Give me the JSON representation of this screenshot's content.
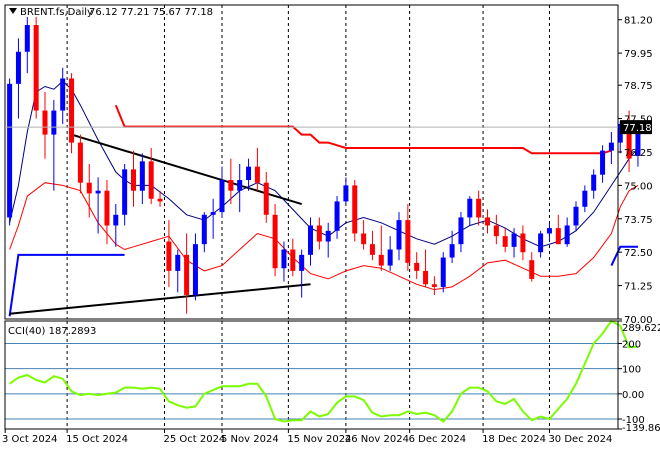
{
  "header": {
    "symbol_label": "BRENT.fs,Daily",
    "ohlc_label": "76.12 77.21 75.67 77.18",
    "indicator_label": "CCI(40) 187.2893"
  },
  "colors": {
    "background": "#ffffff",
    "frame": "#000000",
    "grid": "#c8c8c8",
    "bull": "#0000ff",
    "bear": "#ff0000",
    "sma_fast": "#000080",
    "band_low": "#ff0000",
    "level_red": "#ff0000",
    "level_blue": "#0000ff",
    "trendline": "#000000",
    "cci_line": "#7cfc00",
    "cci_level": "#4682b4",
    "price_tag_bg": "#000000",
    "price_tag_fg": "#ffffff"
  },
  "chart_data": [
    {
      "type": "candlestick",
      "title": "BRENT.fs,Daily",
      "y_range": [
        70.0,
        81.75
      ],
      "y_ticks": [
        "81.20",
        "79.95",
        "78.75",
        "77.50",
        "76.25",
        "75.00",
        "73.75",
        "72.50",
        "71.25",
        "70.00"
      ],
      "last_price_label": "77.18",
      "x_date_labels": [
        "3 Oct 2024",
        "15 Oct 2024",
        "25 Oct 2024",
        "5 Nov 2024",
        "15 Nov 2024",
        "26 Nov 2024",
        "6 Dec 2024",
        "18 Dec 2024",
        "30 Dec 2024"
      ],
      "candles": [
        [
          73.8,
          79.0,
          73.5,
          78.8
        ],
        [
          78.8,
          80.5,
          77.5,
          80.0
        ],
        [
          80.0,
          81.3,
          79.2,
          81.0
        ],
        [
          81.0,
          81.3,
          77.5,
          77.8
        ],
        [
          77.8,
          78.5,
          76.0,
          76.9
        ],
        [
          76.9,
          78.2,
          74.8,
          77.8
        ],
        [
          77.8,
          79.4,
          77.3,
          79.0
        ],
        [
          79.0,
          79.2,
          76.2,
          76.6
        ],
        [
          76.6,
          76.9,
          74.7,
          75.1
        ],
        [
          75.1,
          75.8,
          73.8,
          74.7
        ],
        [
          74.7,
          75.3,
          73.2,
          74.8
        ],
        [
          74.8,
          75.2,
          72.8,
          73.5
        ],
        [
          73.5,
          74.3,
          72.7,
          73.9
        ],
        [
          73.9,
          75.8,
          73.5,
          75.6
        ],
        [
          75.6,
          76.3,
          74.2,
          74.8
        ],
        [
          74.8,
          76.2,
          74.3,
          75.9
        ],
        [
          75.9,
          76.4,
          74.3,
          74.5
        ],
        [
          74.5,
          74.8,
          74.2,
          74.4
        ],
        [
          72.9,
          73.7,
          71.2,
          71.8
        ],
        [
          71.8,
          72.6,
          71.0,
          72.4
        ],
        [
          72.4,
          73.2,
          70.2,
          70.9
        ],
        [
          70.9,
          73.2,
          70.7,
          72.8
        ],
        [
          72.8,
          74.0,
          72.5,
          73.9
        ],
        [
          73.9,
          74.5,
          73.0,
          74.0
        ],
        [
          74.0,
          75.7,
          73.8,
          75.2
        ],
        [
          75.2,
          76.0,
          74.3,
          74.8
        ],
        [
          74.8,
          75.8,
          74.0,
          75.2
        ],
        [
          75.2,
          76.0,
          74.8,
          75.7
        ],
        [
          75.7,
          76.4,
          74.8,
          75.1
        ],
        [
          75.1,
          75.5,
          73.6,
          73.9
        ],
        [
          73.9,
          74.3,
          71.6,
          71.9
        ],
        [
          71.9,
          72.9,
          71.4,
          72.6
        ],
        [
          72.6,
          73.0,
          71.6,
          71.8
        ],
        [
          71.8,
          72.6,
          70.8,
          72.4
        ],
        [
          72.4,
          73.8,
          72.0,
          73.5
        ],
        [
          73.5,
          73.8,
          72.6,
          72.9
        ],
        [
          72.9,
          73.6,
          72.3,
          73.3
        ],
        [
          73.3,
          74.6,
          73.0,
          74.4
        ],
        [
          74.4,
          75.3,
          74.3,
          75.0
        ],
        [
          75.0,
          75.2,
          72.9,
          73.2
        ],
        [
          73.2,
          73.7,
          72.6,
          72.8
        ],
        [
          72.8,
          73.3,
          72.2,
          72.4
        ],
        [
          72.4,
          73.5,
          71.8,
          72.0
        ],
        [
          72.0,
          73.1,
          71.8,
          72.6
        ],
        [
          72.6,
          74.0,
          72.2,
          73.7
        ],
        [
          73.7,
          74.3,
          71.8,
          72.1
        ],
        [
          72.1,
          72.5,
          71.5,
          71.8
        ],
        [
          71.8,
          72.6,
          71.2,
          71.3
        ],
        [
          71.3,
          71.6,
          70.9,
          71.2
        ],
        [
          71.2,
          72.5,
          71.0,
          72.3
        ],
        [
          72.3,
          73.3,
          72.1,
          72.8
        ],
        [
          72.8,
          74.0,
          72.5,
          73.8
        ],
        [
          73.8,
          74.6,
          73.5,
          74.5
        ],
        [
          74.5,
          74.8,
          73.5,
          73.8
        ],
        [
          73.8,
          74.1,
          73.2,
          73.5
        ],
        [
          73.5,
          73.9,
          72.8,
          73.1
        ],
        [
          73.1,
          73.4,
          72.5,
          72.7
        ],
        [
          72.7,
          73.4,
          72.3,
          73.2
        ],
        [
          73.2,
          73.5,
          72.2,
          72.5
        ],
        [
          72.2,
          72.5,
          71.4,
          71.5
        ],
        [
          72.5,
          73.3,
          72.3,
          73.2
        ],
        [
          73.2,
          73.6,
          72.9,
          73.4
        ],
        [
          73.4,
          73.9,
          72.8,
          72.8
        ],
        [
          72.8,
          73.8,
          72.7,
          73.5
        ],
        [
          73.5,
          74.4,
          73.3,
          74.2
        ],
        [
          74.2,
          75.0,
          74.0,
          74.8
        ],
        [
          74.8,
          75.6,
          74.5,
          75.4
        ],
        [
          75.4,
          76.5,
          75.1,
          76.3
        ],
        [
          76.3,
          77.0,
          75.8,
          76.6
        ],
        [
          76.6,
          77.4,
          76.2,
          77.3
        ],
        [
          77.3,
          77.8,
          75.5,
          76.0
        ],
        [
          76.1,
          77.2,
          75.7,
          77.2
        ]
      ],
      "sma_fast": [
        [
          0,
          73.6
        ],
        [
          1,
          75.0
        ],
        [
          2,
          77.0
        ],
        [
          3,
          78.5
        ],
        [
          4,
          78.7
        ],
        [
          5,
          78.6
        ],
        [
          6,
          78.9
        ],
        [
          7,
          78.6
        ],
        [
          8,
          78.0
        ],
        [
          10,
          76.7
        ],
        [
          12,
          75.5
        ],
        [
          13,
          75.2
        ],
        [
          14,
          75.0
        ],
        [
          16,
          75.0
        ],
        [
          18,
          74.5
        ],
        [
          20,
          73.9
        ],
        [
          22,
          73.7
        ],
        [
          24,
          74.2
        ],
        [
          26,
          74.8
        ],
        [
          28,
          75.1
        ],
        [
          30,
          74.8
        ],
        [
          32,
          74.1
        ],
        [
          34,
          73.4
        ],
        [
          36,
          73.1
        ],
        [
          38,
          73.6
        ],
        [
          40,
          73.8
        ],
        [
          42,
          73.6
        ],
        [
          44,
          73.3
        ],
        [
          46,
          73.0
        ],
        [
          48,
          72.8
        ],
        [
          50,
          73.1
        ],
        [
          52,
          73.5
        ],
        [
          54,
          73.7
        ],
        [
          56,
          73.4
        ],
        [
          58,
          73.0
        ],
        [
          60,
          72.7
        ],
        [
          62,
          72.9
        ],
        [
          64,
          73.3
        ],
        [
          66,
          74.0
        ],
        [
          68,
          75.0
        ],
        [
          70,
          76.0
        ],
        [
          71,
          76.4
        ]
      ],
      "band_low": [
        [
          0,
          72.6
        ],
        [
          1,
          73.5
        ],
        [
          2,
          74.6
        ],
        [
          4,
          75.1
        ],
        [
          6,
          75.0
        ],
        [
          8,
          74.8
        ],
        [
          10,
          73.6
        ],
        [
          12,
          72.8
        ],
        [
          13,
          72.6
        ],
        [
          14,
          72.7
        ],
        [
          16,
          72.9
        ],
        [
          18,
          73.1
        ],
        [
          20,
          72.2
        ],
        [
          22,
          71.8
        ],
        [
          24,
          72.0
        ],
        [
          26,
          72.6
        ],
        [
          28,
          73.2
        ],
        [
          30,
          73.0
        ],
        [
          32,
          72.3
        ],
        [
          34,
          71.7
        ],
        [
          36,
          71.5
        ],
        [
          38,
          71.8
        ],
        [
          40,
          72.0
        ],
        [
          42,
          71.9
        ],
        [
          44,
          71.6
        ],
        [
          46,
          71.3
        ],
        [
          48,
          71.1
        ],
        [
          50,
          71.2
        ],
        [
          52,
          71.6
        ],
        [
          54,
          72.1
        ],
        [
          56,
          72.2
        ],
        [
          58,
          71.9
        ],
        [
          60,
          71.6
        ],
        [
          62,
          71.6
        ],
        [
          64,
          71.7
        ],
        [
          66,
          72.3
        ],
        [
          68,
          73.2
        ],
        [
          69,
          74.2
        ],
        [
          70,
          74.8
        ],
        [
          71,
          75.0
        ]
      ],
      "levels_red": [
        [
          [
            12,
            78.0
          ],
          [
            13,
            77.2
          ],
          [
            32,
            77.2
          ],
          [
            33,
            76.9
          ],
          [
            34,
            76.9
          ],
          [
            35,
            76.6
          ],
          [
            36,
            76.6
          ],
          [
            38,
            76.4
          ],
          [
            58,
            76.4
          ],
          [
            59,
            76.2
          ],
          [
            67,
            76.2
          ],
          [
            68,
            76.3
          ]
        ]
      ],
      "levels_blue": [
        [
          [
            0,
            70.1
          ],
          [
            1,
            72.4
          ],
          [
            13,
            72.4
          ]
        ],
        [
          [
            68,
            72.0
          ],
          [
            69,
            72.7
          ],
          [
            71,
            72.7
          ]
        ]
      ],
      "trendlines": [
        [
          [
            7,
            76.9
          ],
          [
            33,
            74.3
          ]
        ],
        [
          [
            0,
            70.2
          ],
          [
            34,
            71.3
          ]
        ]
      ]
    },
    {
      "type": "line",
      "title": "CCI(40) 187.2893",
      "y_range": [
        -139.8,
        289.6
      ],
      "y_ticks": [
        "289.6229",
        "200",
        "100",
        "0.00",
        "-100",
        "-139.8625"
      ],
      "levels": [
        200,
        100,
        0,
        -100
      ],
      "values": [
        [
          0,
          40
        ],
        [
          1,
          65
        ],
        [
          2,
          75
        ],
        [
          3,
          55
        ],
        [
          4,
          45
        ],
        [
          5,
          70
        ],
        [
          6,
          60
        ],
        [
          7,
          10
        ],
        [
          8,
          -5
        ],
        [
          9,
          0
        ],
        [
          10,
          -5
        ],
        [
          11,
          0
        ],
        [
          12,
          5
        ],
        [
          13,
          25
        ],
        [
          14,
          25
        ],
        [
          15,
          20
        ],
        [
          16,
          25
        ],
        [
          17,
          20
        ],
        [
          18,
          -30
        ],
        [
          19,
          -45
        ],
        [
          20,
          -55
        ],
        [
          21,
          -50
        ],
        [
          22,
          0
        ],
        [
          23,
          15
        ],
        [
          24,
          30
        ],
        [
          25,
          30
        ],
        [
          26,
          30
        ],
        [
          27,
          40
        ],
        [
          28,
          40
        ],
        [
          29,
          -10
        ],
        [
          30,
          -100
        ],
        [
          31,
          -110
        ],
        [
          32,
          -105
        ],
        [
          33,
          -105
        ],
        [
          34,
          -70
        ],
        [
          35,
          -90
        ],
        [
          36,
          -80
        ],
        [
          37,
          -35
        ],
        [
          38,
          -10
        ],
        [
          39,
          -10
        ],
        [
          40,
          -25
        ],
        [
          41,
          -75
        ],
        [
          42,
          -90
        ],
        [
          43,
          -85
        ],
        [
          44,
          -85
        ],
        [
          45,
          -70
        ],
        [
          46,
          -80
        ],
        [
          47,
          -75
        ],
        [
          48,
          -85
        ],
        [
          49,
          -110
        ],
        [
          50,
          -70
        ],
        [
          51,
          0
        ],
        [
          52,
          25
        ],
        [
          53,
          25
        ],
        [
          54,
          10
        ],
        [
          55,
          -30
        ],
        [
          56,
          -40
        ],
        [
          57,
          -20
        ],
        [
          58,
          -70
        ],
        [
          59,
          -105
        ],
        [
          60,
          -90
        ],
        [
          61,
          -100
        ],
        [
          62,
          -60
        ],
        [
          63,
          -20
        ],
        [
          64,
          40
        ],
        [
          65,
          120
        ],
        [
          66,
          200
        ],
        [
          67,
          240
        ],
        [
          68,
          290
        ],
        [
          69,
          270
        ],
        [
          70,
          185
        ],
        [
          71,
          187
        ]
      ]
    }
  ]
}
